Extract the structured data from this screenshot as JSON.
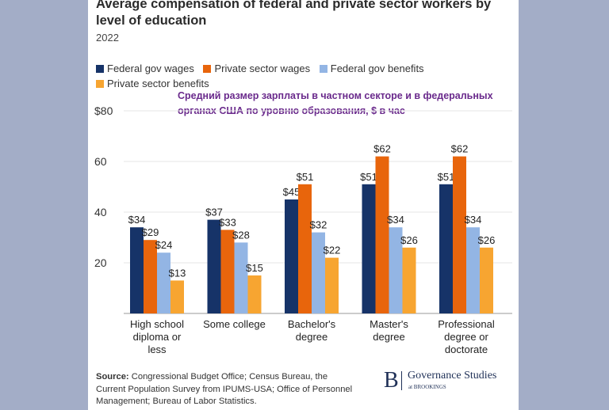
{
  "colors": {
    "Federal gov wages": "#163368",
    "Private sector wages": "#e8650c",
    "Federal gov benefits": "#93b5e4",
    "Private sector benefits": "#f7a531"
  },
  "chart_data": {
    "type": "bar",
    "title": "Average compensation of federal and private sector workers by level of education",
    "subtitle": "2022",
    "annotation": "Средний размер зарплаты в частном секторе и в федеральных органах США по уровню образования, $ в час",
    "categories": [
      "High school diploma or less",
      "Some college",
      "Bachelor's degree",
      "Master's degree",
      "Professional degree or doctorate"
    ],
    "series": [
      {
        "name": "Federal gov wages",
        "values": [
          34,
          37,
          45,
          51,
          51
        ]
      },
      {
        "name": "Private sector wages",
        "values": [
          29,
          33,
          51,
          62,
          62
        ]
      },
      {
        "name": "Federal gov benefits",
        "values": [
          24,
          28,
          32,
          34,
          34
        ]
      },
      {
        "name": "Private sector benefits",
        "values": [
          13,
          15,
          22,
          26,
          26
        ]
      }
    ],
    "data_labels": [
      [
        "$34",
        "$37",
        "$45",
        "$51",
        "$51"
      ],
      [
        "$29",
        "$33",
        "$51",
        "$62",
        "$62"
      ],
      [
        "$24",
        "$28",
        "$32",
        "$34",
        "$34"
      ],
      [
        "$13",
        "$15",
        "$22",
        "$26",
        "$26"
      ]
    ],
    "yticks": [
      {
        "value": 20,
        "label": "20"
      },
      {
        "value": 40,
        "label": "40"
      },
      {
        "value": 60,
        "label": "60"
      },
      {
        "value": 80,
        "label": "$80"
      }
    ],
    "ylim": [
      0,
      80
    ],
    "grid": true,
    "legend": "top-left"
  },
  "category_lines": [
    [
      "High school",
      "diploma or",
      "less"
    ],
    [
      "Some college"
    ],
    [
      "Bachelor's",
      "degree"
    ],
    [
      "Master's",
      "degree"
    ],
    [
      "Professional",
      "degree or",
      "doctorate"
    ]
  ],
  "source": {
    "label": "Source:",
    "text": " Congressional Budget Office; Census Bureau, the Current Population Survey from IPUMS-USA; Office of Personnel Management; Bureau of Labor Statistics."
  },
  "brand": {
    "logo": "B",
    "name": "Governance Studies",
    "sub": "at BROOKINGS"
  }
}
